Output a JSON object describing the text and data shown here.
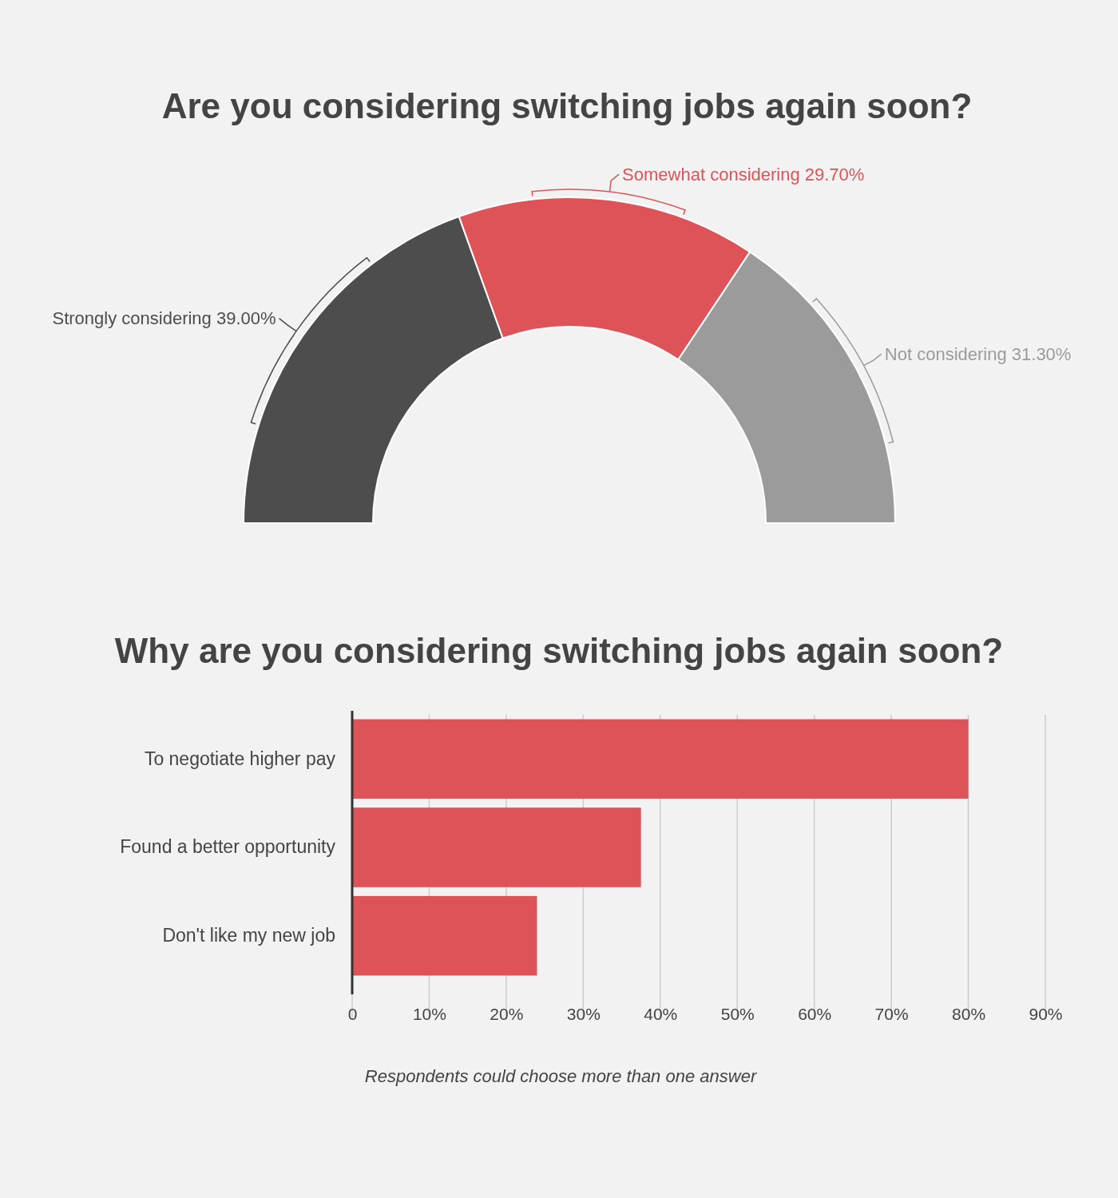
{
  "chart_data": [
    {
      "type": "donut",
      "title": "Are you considering switching jobs again soon?",
      "categories": [
        "Strongly considering",
        "Somewhat considering",
        "Not considering"
      ],
      "values": [
        39.0,
        29.7,
        31.3
      ],
      "value_labels": [
        "39.00%",
        "29.70%",
        "31.30%"
      ],
      "colors": [
        "#4d4d4d",
        "#dd5357",
        "#9b9b9b"
      ]
    },
    {
      "type": "bar",
      "orientation": "horizontal",
      "title": "Why are you considering switching jobs again soon?",
      "categories": [
        "To negotiate higher pay",
        "Found a better opportunity",
        "Don't like my new job"
      ],
      "values": [
        80,
        37.5,
        24
      ],
      "color": "#dd5357",
      "xlim": [
        0,
        90
      ],
      "xticks": [
        0,
        {
          "value": 10,
          "label": "10%"
        },
        {
          "value": 20,
          "label": "20%"
        },
        {
          "value": 30,
          "label": "30%"
        },
        {
          "value": 40,
          "label": "40%"
        },
        {
          "value": 50,
          "label": "50%"
        },
        {
          "value": 60,
          "label": "60%"
        },
        {
          "value": 70,
          "label": "70%"
        },
        {
          "value": 80,
          "label": "80%"
        },
        {
          "value": 90,
          "label": "90%"
        }
      ],
      "grid": "x",
      "annotations": [
        "Respondents could choose more than one answer"
      ]
    }
  ]
}
